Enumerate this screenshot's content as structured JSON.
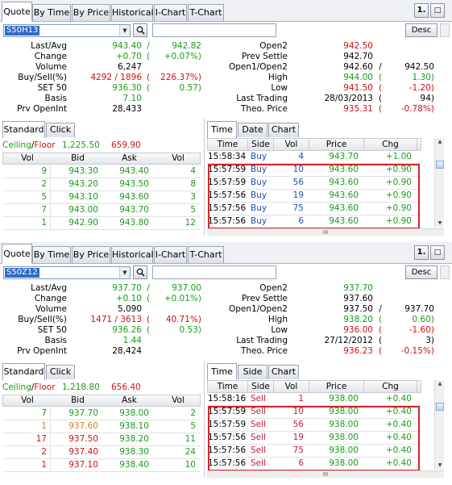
{
  "panels": [
    {
      "tabs": [
        "Quote",
        "By Time",
        "By Price",
        "Historical",
        "I-Chart",
        "T-Chart"
      ],
      "toolbar_buttons": [
        "1.",
        "□"
      ],
      "symbol": "S50H13",
      "sort_button": "Desc",
      "left_info": [
        {
          "label": "Last/Avg",
          "v1": "943.40",
          "sep": "/",
          "v2": "942.82",
          "c1": "g",
          "c2": "g"
        },
        {
          "label": "Change",
          "v1": "+0.70",
          "sep": "(",
          "v2": "+0.07%)",
          "c1": "g",
          "c2": "g"
        },
        {
          "label": "Volume",
          "v1": "6,247",
          "sep": "",
          "v2": "",
          "c1": "k",
          "c2": "k"
        },
        {
          "label": "Buy/Sell(%)",
          "v1": "4292 / 1896",
          "sep": "(",
          "v2": "226.37%)",
          "c1": "r",
          "c2": "r"
        },
        {
          "label": "SET 50",
          "v1": "936.30",
          "sep": "(",
          "v2": "0.57)",
          "c1": "g",
          "c2": "g"
        },
        {
          "label": "Basis",
          "v1": "7.10",
          "sep": "",
          "v2": "",
          "c1": "g",
          "c2": "g"
        },
        {
          "label": "Prv OpenInt",
          "v1": "28,433",
          "sep": "",
          "v2": "",
          "c1": "k",
          "c2": "k"
        }
      ],
      "right_info": [
        {
          "label": "Open2",
          "v1": "942.50",
          "sep": "",
          "v2": "",
          "c1": "r",
          "c2": "r"
        },
        {
          "label": "Prev Settle",
          "v1": "942.70",
          "sep": "",
          "v2": "",
          "c1": "k",
          "c2": "k"
        },
        {
          "label": "Open1/Open2",
          "v1": "942.60",
          "sep": "/",
          "v2": "942.50",
          "c1": "k",
          "c2": "k"
        },
        {
          "label": "High",
          "v1": "944.00",
          "sep": "(",
          "v2": "1.30)",
          "c1": "g",
          "c2": "g"
        },
        {
          "label": "Low",
          "v1": "941.50",
          "sep": "(",
          "v2": "-1.20)",
          "c1": "r",
          "c2": "r"
        },
        {
          "label": "Last Trading",
          "v1": "28/03/2013",
          "sep": "(",
          "v2": "94)",
          "c1": "k",
          "c2": "k"
        },
        {
          "label": "Theo. Price",
          "v1": "935.31",
          "sep": "(",
          "v2": "-0.78%)",
          "c1": "r",
          "c2": "r"
        }
      ],
      "left_tabs": [
        "Standard",
        "Click"
      ],
      "ceiling_label": "Ceiling",
      "floor_label": "Floor",
      "ceiling_value": "1,225.50",
      "floor_value": "659.90",
      "book_headers": [
        "Vol",
        "Bid",
        "Ask",
        "Vol"
      ],
      "book_rows": [
        {
          "bv": "9",
          "bid": "943.30",
          "ask": "943.40",
          "av": "4",
          "c": "g",
          "bvc": "g"
        },
        {
          "bv": "2",
          "bid": "943.20",
          "ask": "943.50",
          "av": "8",
          "c": "g",
          "bvc": "g"
        },
        {
          "bv": "5",
          "bid": "943.10",
          "ask": "943.60",
          "av": "3",
          "c": "g",
          "bvc": "g"
        },
        {
          "bv": "7",
          "bid": "943.00",
          "ask": "943.70",
          "av": "5",
          "c": "g",
          "bvc": "g"
        },
        {
          "bv": "1",
          "bid": "942.90",
          "ask": "943.80",
          "av": "12",
          "c": "g",
          "bvc": "g"
        }
      ],
      "right_tabs": [
        "Time",
        "Date",
        "Chart"
      ],
      "trade_headers": [
        "Time",
        "Side",
        "Vol",
        "Price",
        "Chg"
      ],
      "trades": [
        {
          "time": "15:58:34",
          "side": "Buy",
          "vol": "4",
          "price": "943.70",
          "chg": "+1.00"
        },
        {
          "time": "15:57:59",
          "side": "Buy",
          "vol": "10",
          "price": "943.60",
          "chg": "+0.90"
        },
        {
          "time": "15:57:59",
          "side": "Buy",
          "vol": "56",
          "price": "943.60",
          "chg": "+0.90"
        },
        {
          "time": "15:57:56",
          "side": "Buy",
          "vol": "19",
          "price": "943.60",
          "chg": "+0.90"
        },
        {
          "time": "15:57:56",
          "side": "Buy",
          "vol": "75",
          "price": "943.60",
          "chg": "+0.90"
        },
        {
          "time": "15:57:56",
          "side": "Buy",
          "vol": "6",
          "price": "943.60",
          "chg": "+0.90"
        }
      ],
      "side_color": "#1f4fb0"
    },
    {
      "tabs": [
        "Quote",
        "By Time",
        "By Price",
        "Historical",
        "I-Chart",
        "T-Chart"
      ],
      "toolbar_buttons": [
        "1.",
        "□"
      ],
      "symbol": "S50Z12",
      "sort_button": "Desc",
      "left_info": [
        {
          "label": "Last/Avg",
          "v1": "937.70",
          "sep": "/",
          "v2": "937.00",
          "c1": "g",
          "c2": "g"
        },
        {
          "label": "Change",
          "v1": "+0.10",
          "sep": "(",
          "v2": "+0.01%)",
          "c1": "g",
          "c2": "g"
        },
        {
          "label": "Volume",
          "v1": "5,090",
          "sep": "",
          "v2": "",
          "c1": "k",
          "c2": "k"
        },
        {
          "label": "Buy/Sell(%)",
          "v1": "1471 / 3613",
          "sep": "(",
          "v2": "40.71%)",
          "c1": "r",
          "c2": "r"
        },
        {
          "label": "SET 50",
          "v1": "936.26",
          "sep": "(",
          "v2": "0.53)",
          "c1": "g",
          "c2": "g"
        },
        {
          "label": "Basis",
          "v1": "1.44",
          "sep": "",
          "v2": "",
          "c1": "g",
          "c2": "g"
        },
        {
          "label": "Prv OpenInt",
          "v1": "28,424",
          "sep": "",
          "v2": "",
          "c1": "k",
          "c2": "k"
        }
      ],
      "right_info": [
        {
          "label": "Open2",
          "v1": "937.70",
          "sep": "",
          "v2": "",
          "c1": "g",
          "c2": "g"
        },
        {
          "label": "Prev Settle",
          "v1": "937.60",
          "sep": "",
          "v2": "",
          "c1": "k",
          "c2": "k"
        },
        {
          "label": "Open1/Open2",
          "v1": "937.50",
          "sep": "/",
          "v2": "937.70",
          "c1": "k",
          "c2": "k"
        },
        {
          "label": "High",
          "v1": "938.20",
          "sep": "(",
          "v2": "0.60)",
          "c1": "g",
          "c2": "g"
        },
        {
          "label": "Low",
          "v1": "936.00",
          "sep": "(",
          "v2": "-1.60)",
          "c1": "r",
          "c2": "r"
        },
        {
          "label": "Last Trading",
          "v1": "27/12/2012",
          "sep": "(",
          "v2": "3)",
          "c1": "k",
          "c2": "k"
        },
        {
          "label": "Theo. Price",
          "v1": "936.23",
          "sep": "(",
          "v2": "-0.15%)",
          "c1": "r",
          "c2": "r"
        }
      ],
      "left_tabs": [
        "Standard",
        "Click"
      ],
      "ceiling_label": "Ceiling",
      "floor_label": "Floor",
      "ceiling_value": "1,218.80",
      "floor_value": "656.40",
      "book_headers": [
        "Vol",
        "Bid",
        "Ask",
        "Vol"
      ],
      "book_rows": [
        {
          "bv": "7",
          "bid": "937.70",
          "ask": "938.00",
          "av": "2",
          "c": "g",
          "bvc": "g"
        },
        {
          "bv": "1",
          "bid": "937.60",
          "ask": "938.10",
          "av": "5",
          "c": "o",
          "bvc": "o"
        },
        {
          "bv": "17",
          "bid": "937.50",
          "ask": "938.20",
          "av": "11",
          "c": "r",
          "bvc": "r"
        },
        {
          "bv": "2",
          "bid": "937.40",
          "ask": "938.30",
          "av": "24",
          "c": "r",
          "bvc": "r"
        },
        {
          "bv": "1",
          "bid": "937.10",
          "ask": "938.40",
          "av": "10",
          "c": "r",
          "bvc": "r"
        }
      ],
      "right_tabs": [
        "Time",
        "Side",
        "Chart"
      ],
      "trade_headers": [
        "Time",
        "Side",
        "Vol",
        "Price",
        "Chg"
      ],
      "trades": [
        {
          "time": "15:58:16",
          "side": "Sell",
          "vol": "1",
          "price": "938.00",
          "chg": "+0.40"
        },
        {
          "time": "15:57:59",
          "side": "Sell",
          "vol": "10",
          "price": "938.00",
          "chg": "+0.40"
        },
        {
          "time": "15:57:59",
          "side": "Sell",
          "vol": "56",
          "price": "938.00",
          "chg": "+0.40"
        },
        {
          "time": "15:57:56",
          "side": "Sell",
          "vol": "19",
          "price": "938.00",
          "chg": "+0.40"
        },
        {
          "time": "15:57:56",
          "side": "Sell",
          "vol": "75",
          "price": "938.00",
          "chg": "+0.40"
        },
        {
          "time": "15:57:56",
          "side": "Sell",
          "vol": "6",
          "price": "938.00",
          "chg": "+0.40"
        }
      ],
      "side_color": "#c01f3a"
    }
  ],
  "colors": {
    "up": "#1a9b1a",
    "down": "#d01010",
    "highlight": "#d6232b",
    "selection": "#316ac5"
  }
}
